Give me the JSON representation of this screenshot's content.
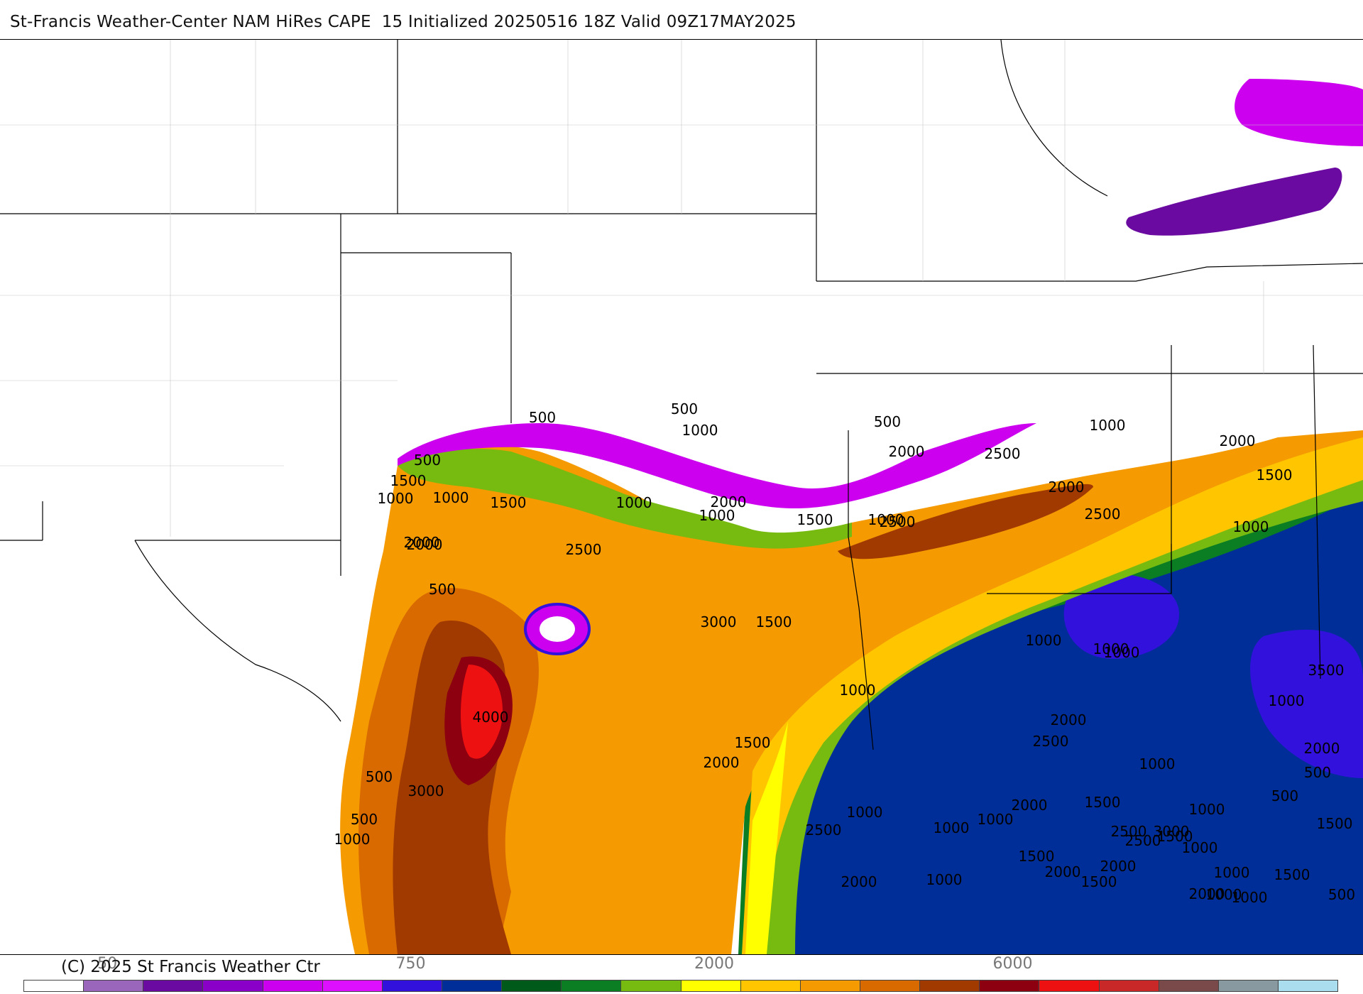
{
  "title": "St-Francis Weather-Center NAM HiRes CAPE  15 Initialized 20250516 18Z Valid 09Z17MAY2025",
  "copyright": "(C) 2025 St Francis Weather Ctr",
  "colorbar": {
    "colors": [
      "#ffffff",
      "#9966bb",
      "#6a0aa0",
      "#8a00c8",
      "#cc00ee",
      "#dd11ff",
      "#3311dd",
      "#002e99",
      "#005a1a",
      "#0b7d22",
      "#77bb11",
      "#ffff00",
      "#ffc600",
      "#f59a00",
      "#d96a00",
      "#a03a00",
      "#8c0010",
      "#ee1111",
      "#c82828",
      "#7a4a4a",
      "#8899a0",
      "#aaddee"
    ],
    "tick_labels": [
      {
        "text": "50",
        "index": 1
      },
      {
        "text": "750",
        "index": 6
      },
      {
        "text": "2000",
        "index": 11
      },
      {
        "text": "6000",
        "index": 16
      }
    ]
  },
  "contour_labels": [
    {
      "text": "500"
    },
    {
      "text": "500"
    },
    {
      "text": "1000"
    },
    {
      "text": "500"
    },
    {
      "text": "1500"
    },
    {
      "text": "1000"
    },
    {
      "text": "1000"
    },
    {
      "text": "500"
    },
    {
      "text": "1500"
    },
    {
      "text": "1000"
    },
    {
      "text": "2000"
    },
    {
      "text": "1000"
    },
    {
      "text": "1500"
    },
    {
      "text": "1000"
    },
    {
      "text": "500"
    },
    {
      "text": "2000"
    },
    {
      "text": "1000"
    },
    {
      "text": "2500"
    },
    {
      "text": "2500"
    },
    {
      "text": "2000"
    },
    {
      "text": "1500"
    },
    {
      "text": "1000"
    },
    {
      "text": "500"
    },
    {
      "text": "2000"
    },
    {
      "text": "1500"
    },
    {
      "text": "2500"
    },
    {
      "text": "1500"
    },
    {
      "text": "1000"
    },
    {
      "text": "2000"
    },
    {
      "text": "2000"
    },
    {
      "text": "1000"
    },
    {
      "text": "500"
    },
    {
      "text": "2500"
    },
    {
      "text": "1500"
    },
    {
      "text": "3000"
    },
    {
      "text": "500"
    },
    {
      "text": "2000"
    },
    {
      "text": "3500"
    },
    {
      "text": "1000"
    },
    {
      "text": "1000"
    },
    {
      "text": "1500"
    },
    {
      "text": "2500"
    },
    {
      "text": "2000"
    },
    {
      "text": "2000"
    },
    {
      "text": "1000"
    },
    {
      "text": "1000"
    },
    {
      "text": "2000"
    },
    {
      "text": "1000"
    },
    {
      "text": "4000"
    },
    {
      "text": "1500"
    },
    {
      "text": "1000"
    },
    {
      "text": "2500"
    },
    {
      "text": "2000"
    },
    {
      "text": "2000"
    },
    {
      "text": "500"
    },
    {
      "text": "3000"
    },
    {
      "text": "500"
    },
    {
      "text": "1000"
    },
    {
      "text": "1000"
    },
    {
      "text": "1000"
    },
    {
      "text": "3000"
    },
    {
      "text": "2500"
    },
    {
      "text": "1500"
    },
    {
      "text": "1000"
    },
    {
      "text": "2000"
    },
    {
      "text": "1500"
    },
    {
      "text": "1500"
    },
    {
      "text": "2000"
    },
    {
      "text": "1000"
    },
    {
      "text": "2500"
    },
    {
      "text": "1000"
    },
    {
      "text": "1000"
    },
    {
      "text": "1000"
    }
  ]
}
